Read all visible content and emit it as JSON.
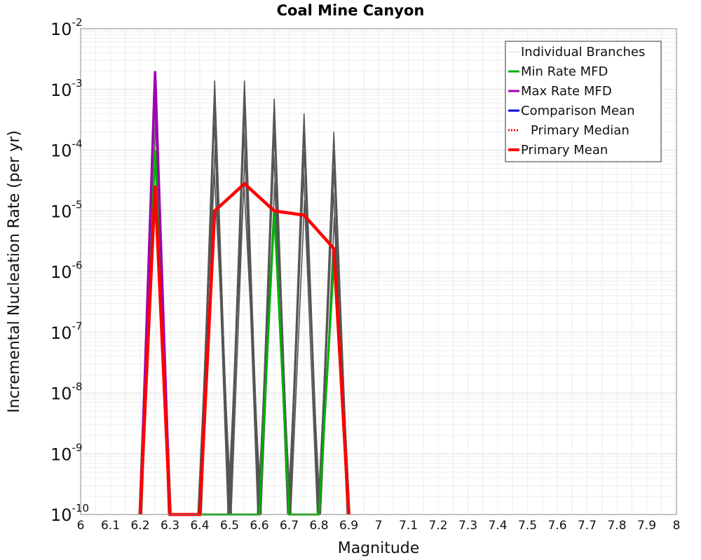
{
  "chart_data": {
    "type": "line",
    "title": "Coal Mine Canyon",
    "xlabel": "Magnitude",
    "ylabel": "Incremental Nucleation Rate (per yr)",
    "xlim": [
      6,
      8
    ],
    "ylim": [
      1e-10,
      0.01
    ],
    "yscale": "log",
    "grid": true,
    "x_ticks": [
      "6",
      "6.1",
      "6.2",
      "6.3",
      "6.4",
      "6.5",
      "6.6",
      "6.7",
      "6.8",
      "6.9",
      "7",
      "7.1",
      "7.2",
      "7.3",
      "7.4",
      "7.5",
      "7.6",
      "7.7",
      "7.8",
      "7.9",
      "8"
    ],
    "y_ticks": [
      {
        "base": "10",
        "exp": "-10",
        "value": 1e-10
      },
      {
        "base": "10",
        "exp": "-9",
        "value": 1e-09
      },
      {
        "base": "10",
        "exp": "-8",
        "value": 1e-08
      },
      {
        "base": "10",
        "exp": "-7",
        "value": 1e-07
      },
      {
        "base": "10",
        "exp": "-6",
        "value": 1e-06
      },
      {
        "base": "10",
        "exp": "-5",
        "value": 1e-05
      },
      {
        "base": "10",
        "exp": "-4",
        "value": 0.0001
      },
      {
        "base": "10",
        "exp": "-3",
        "value": 0.001
      },
      {
        "base": "10",
        "exp": "-2",
        "value": 0.01
      }
    ],
    "legend_position": "top-right",
    "legend": [
      {
        "name": "Individual Branches",
        "color": "#d0d0d0",
        "style": "thin"
      },
      {
        "name": "Min Rate MFD",
        "color": "#00b000",
        "style": "solid"
      },
      {
        "name": "Max Rate MFD",
        "color": "#a000b0",
        "style": "solid"
      },
      {
        "name": "Comparison Mean",
        "color": "#0000e0",
        "style": "solid"
      },
      {
        "name": "Primary Median",
        "color": "#ff0000",
        "style": "dotted"
      },
      {
        "name": "Primary Mean",
        "color": "#ff0000",
        "style": "thick"
      }
    ],
    "branches": [
      {
        "mag": 6.25,
        "peaks": [
          0.002,
          0.0015,
          0.001,
          0.0006,
          0.0003
        ]
      },
      {
        "mag": 6.45,
        "peaks": [
          0.0014,
          0.001,
          0.0006,
          0.0003,
          0.00012,
          5e-05
        ]
      },
      {
        "mag": 6.55,
        "peaks": [
          0.0014,
          0.0009,
          0.0005,
          0.0002,
          9e-05,
          3e-05
        ]
      },
      {
        "mag": 6.65,
        "peaks": [
          0.0007,
          0.0004,
          0.0002,
          8e-05,
          3e-05,
          1e-05
        ]
      },
      {
        "mag": 6.75,
        "peaks": [
          0.0004,
          0.0002,
          0.0001,
          4e-05,
          1.5e-05
        ]
      },
      {
        "mag": 6.85,
        "peaks": [
          0.0002,
          0.0001,
          5e-05,
          2e-05,
          8e-06
        ]
      }
    ],
    "series": [
      {
        "name": "Min Rate MFD",
        "color": "#00b000",
        "width": 3,
        "x": [
          6.2,
          6.25,
          6.3,
          6.6,
          6.65,
          6.7,
          6.8,
          6.85,
          6.9
        ],
        "y": [
          1e-10,
          0.0001,
          1e-10,
          1e-10,
          1e-05,
          1e-10,
          1e-10,
          1.5e-06,
          1e-10
        ]
      },
      {
        "name": "Max Rate MFD",
        "color": "#a000b0",
        "width": 3.5,
        "x": [
          6.2,
          6.25,
          6.3
        ],
        "y": [
          1e-10,
          0.002,
          1e-10
        ]
      },
      {
        "name": "Primary Mean",
        "color": "#ff0000",
        "width": 4.5,
        "x": [
          6.2,
          6.25,
          6.3,
          6.4,
          6.45,
          6.55,
          6.65,
          6.75,
          6.85,
          6.9
        ],
        "y": [
          1e-10,
          2.6e-05,
          1e-10,
          1e-10,
          1e-05,
          2.8e-05,
          1e-05,
          8.5e-06,
          2.4e-06,
          1e-10
        ]
      }
    ]
  }
}
